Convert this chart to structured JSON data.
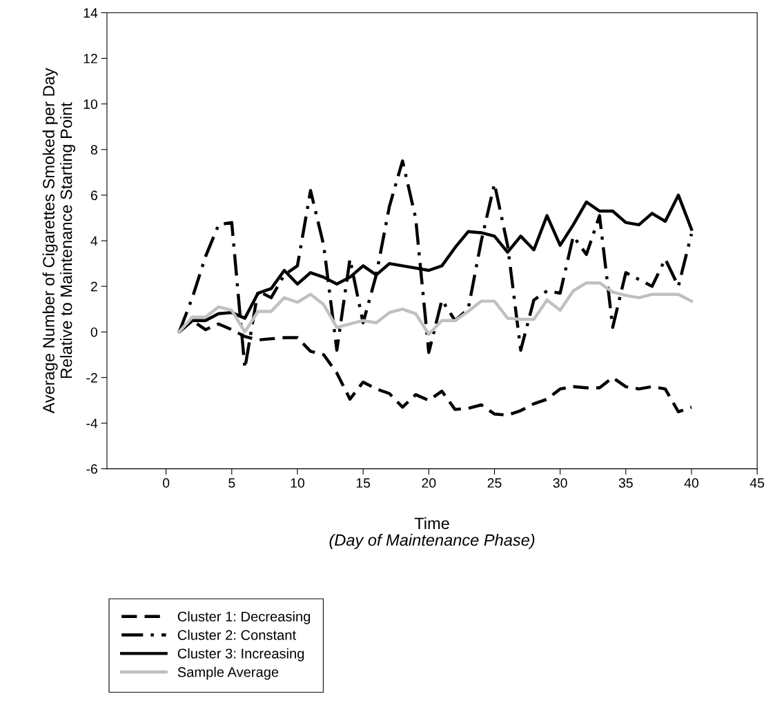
{
  "chart_data": {
    "type": "line",
    "xlabel": "Time",
    "ylabel": "Average Number of Cigarettes Smoked per Day\nRelative to Maintenance Starting Point",
    "annotations": [
      "(Day of Maintenance Phase)"
    ],
    "x": [
      1,
      2,
      3,
      4,
      5,
      6,
      7,
      8,
      9,
      10,
      11,
      12,
      13,
      14,
      15,
      16,
      17,
      18,
      19,
      20,
      21,
      22,
      23,
      24,
      25,
      26,
      27,
      28,
      29,
      30,
      31,
      32,
      33,
      34,
      35,
      36,
      37,
      38,
      39,
      40
    ],
    "series": [
      {
        "name": "Cluster 1: Decreasing",
        "color": "#000000",
        "line_style": "dashed",
        "values": [
          0,
          0.5,
          0.1,
          0.35,
          0.1,
          -0.2,
          -0.35,
          -0.3,
          -0.25,
          -0.25,
          -0.85,
          -1.0,
          -1.8,
          -2.95,
          -2.2,
          -2.5,
          -2.7,
          -3.3,
          -2.75,
          -3.0,
          -2.6,
          -3.4,
          -3.35,
          -3.2,
          -3.6,
          -3.65,
          -3.45,
          -3.15,
          -2.95,
          -2.5,
          -2.4,
          -2.45,
          -2.45,
          -2.0,
          -2.4,
          -2.5,
          -2.4,
          -2.5,
          -3.5,
          -3.3
        ]
      },
      {
        "name": "Cluster 2: Constant",
        "color": "#000000",
        "line_style": "dashdot",
        "values": [
          0,
          1.5,
          3.3,
          4.7,
          4.8,
          -1.6,
          1.8,
          1.5,
          2.5,
          2.9,
          6.2,
          3.8,
          -0.8,
          3.2,
          0.4,
          2.5,
          5.5,
          7.5,
          5.0,
          -0.9,
          1.4,
          0.5,
          1.0,
          4.0,
          6.5,
          3.8,
          -0.8,
          1.4,
          1.8,
          1.7,
          4.2,
          3.4,
          5.1,
          0.2,
          2.6,
          2.3,
          2.0,
          3.2,
          2.0,
          4.3
        ]
      },
      {
        "name": "Cluster 3: Increasing",
        "color": "#000000",
        "line_style": "solid",
        "values": [
          0,
          0.5,
          0.5,
          0.8,
          0.85,
          0.6,
          1.7,
          1.9,
          2.7,
          2.1,
          2.6,
          2.4,
          2.1,
          2.4,
          2.9,
          2.5,
          3.0,
          2.9,
          2.8,
          2.7,
          2.9,
          3.7,
          4.4,
          4.35,
          4.2,
          3.5,
          4.2,
          3.6,
          5.1,
          3.8,
          4.7,
          5.7,
          5.3,
          5.3,
          4.8,
          4.7,
          5.2,
          4.85,
          6.0,
          4.5
        ]
      },
      {
        "name": "Sample Average",
        "color": "#c0c0c0",
        "line_style": "solid",
        "values": [
          0,
          0.65,
          0.65,
          1.1,
          0.95,
          0.0,
          0.9,
          0.9,
          1.5,
          1.3,
          1.65,
          1.2,
          0.2,
          0.35,
          0.5,
          0.4,
          0.85,
          1.0,
          0.8,
          -0.1,
          0.5,
          0.5,
          0.9,
          1.35,
          1.35,
          0.6,
          0.55,
          0.55,
          1.4,
          0.95,
          1.8,
          2.15,
          2.15,
          1.75,
          1.6,
          1.5,
          1.65,
          1.65,
          1.65,
          1.35
        ]
      }
    ],
    "xlim": [
      -4.5,
      45
    ],
    "xticks": [
      0,
      5,
      10,
      15,
      20,
      25,
      30,
      35,
      40,
      45
    ],
    "ylim": [
      -6,
      14
    ],
    "yticks": [
      -6,
      -4,
      -2,
      0,
      2,
      4,
      6,
      8,
      10,
      12,
      14
    ],
    "grid": false,
    "legend": "bottom left",
    "marker": "none"
  }
}
